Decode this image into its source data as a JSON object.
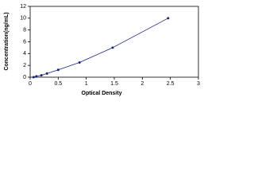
{
  "chart_data": {
    "type": "scatter",
    "x_label": "Optical Density",
    "y_label": "Concentration(ng/mL)",
    "x": [
      0.06,
      0.11,
      0.2,
      0.3,
      0.5,
      0.88,
      1.47,
      2.46
    ],
    "values": [
      0,
      0.156,
      0.312,
      0.625,
      1.25,
      2.5,
      5,
      10
    ],
    "color": "#1a237e",
    "xlim": [
      0,
      3
    ],
    "xticks": [
      0,
      0.5,
      1,
      1.5,
      2,
      2.5,
      3
    ],
    "ylim": [
      0,
      12
    ],
    "yticks": [
      0,
      2,
      4,
      6,
      8,
      10,
      12
    ]
  }
}
